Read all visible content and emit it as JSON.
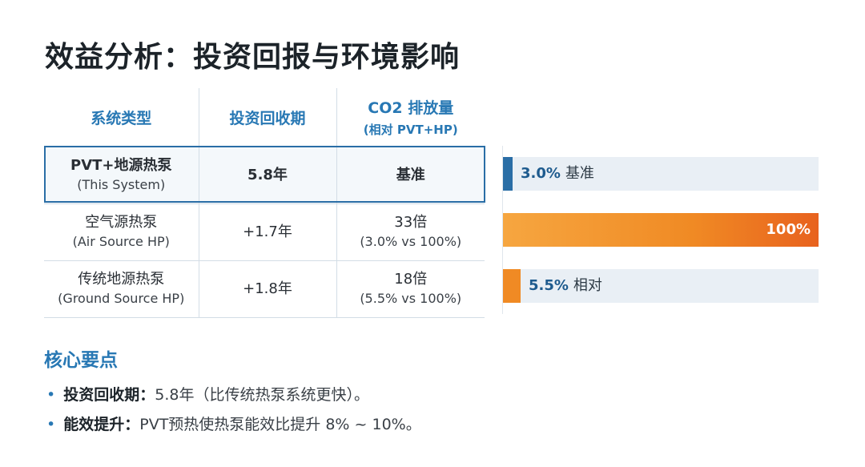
{
  "title": "效益分析：投资回报与环境影响",
  "table": {
    "headers": {
      "type": "系统类型",
      "payback": "投资回收期",
      "co2": "CO2 排放量",
      "co2_sub": "(相对 PVT+HP)"
    },
    "rows": [
      {
        "name": "PVT+地源热泵",
        "name_en": "(This System)",
        "payback": "5.8年",
        "co2": "基准",
        "co2_sub": ""
      },
      {
        "name": "空气源热泵",
        "name_en": "(Air Source HP)",
        "payback": "+1.7年",
        "co2": "33倍",
        "co2_sub": "(3.0% vs 100%)"
      },
      {
        "name": "传统地源热泵",
        "name_en": "(Ground Source HP)",
        "payback": "+1.8年",
        "co2": "18倍",
        "co2_sub": "(5.5% vs 100%)"
      }
    ]
  },
  "bars": [
    {
      "value_label": "3.0%",
      "tag": "基准",
      "fraction": 0.03,
      "color": "#2a6ea6"
    },
    {
      "value_label": "100%",
      "tag": "",
      "fraction": 1.0,
      "color": "#f08a24"
    },
    {
      "value_label": "5.5%",
      "tag": "相对",
      "fraction": 0.055,
      "color": "#f08a24"
    }
  ],
  "key_points": {
    "title": "核心要点",
    "items": [
      {
        "label": "投资回收期：",
        "text": "5.8年（比传统热泵系统更快）。"
      },
      {
        "label": "能效提升：",
        "text": "PVT预热使热泵能效比提升 8% ~ 10%。"
      }
    ]
  }
}
